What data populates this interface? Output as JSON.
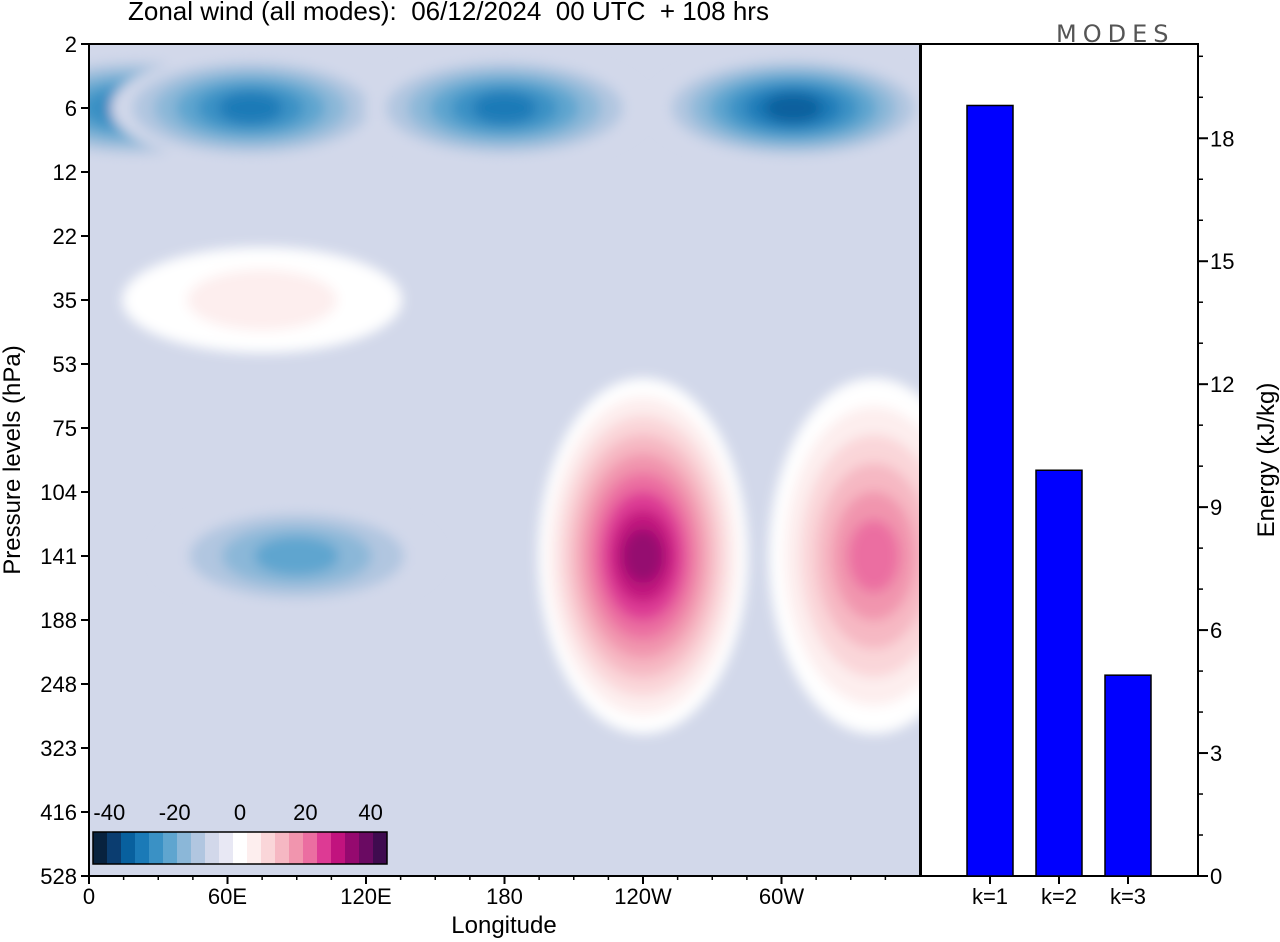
{
  "title": "Zonal wind (all modes):  06/12/2024  00 UTC  + 108 hrs",
  "brand": "MODES",
  "colors": {
    "bar_fill": "#0000ff",
    "frame": "#000000",
    "scale": [
      "#08223f",
      "#0b3d70",
      "#08609e",
      "#1b7ab7",
      "#3a91c5",
      "#5fa5cf",
      "#8bb7d8",
      "#b1c6e0",
      "#d2d8ea",
      "#e8e8f4",
      "#ffffff",
      "#fdeeee",
      "#fad6d9",
      "#f6b8c3",
      "#f195ae",
      "#eb6ea1",
      "#dd3a94",
      "#c1137e",
      "#95096f",
      "#6a0a62",
      "#3f0b4f"
    ]
  },
  "chart_data": [
    {
      "type": "heatmap",
      "title": "Zonal wind (all modes):  06/12/2024  00 UTC  + 108 hrs",
      "xlabel": "Longitude",
      "ylabel": "Pressure levels (hPa)",
      "x_ticks": [
        "0",
        "60E",
        "120E",
        "180",
        "120W",
        "60W"
      ],
      "y_ticks": [
        "2",
        "6",
        "12",
        "22",
        "35",
        "53",
        "75",
        "104",
        "141",
        "188",
        "248",
        "323",
        "416",
        "528"
      ],
      "colorbar": {
        "labels": [
          "-40",
          "-20",
          "0",
          "20",
          "40"
        ],
        "range": [
          -45,
          45
        ],
        "step": 5
      },
      "features": [
        {
          "lon": 20,
          "level": "6",
          "value": -32
        },
        {
          "lon": 70,
          "level": "6",
          "value": -30
        },
        {
          "lon": 180,
          "level": "6",
          "value": -30
        },
        {
          "lon": 305,
          "level": "6",
          "value": -36
        },
        {
          "lon": 240,
          "level": "141",
          "value": 45
        },
        {
          "lon": 340,
          "level": "141",
          "value": 32
        },
        {
          "lon": 90,
          "level": "141",
          "value": -22
        },
        {
          "lon": 75,
          "level": "35",
          "value": 12
        }
      ]
    },
    {
      "type": "bar",
      "categories": [
        "k=1",
        "k=2",
        "k=3"
      ],
      "values": [
        18.8,
        9.9,
        4.9
      ],
      "ylabel": "Energy (kJ/kg)",
      "y_ticks": [
        "0",
        "3",
        "6",
        "9",
        "12",
        "15",
        "18"
      ],
      "ylim": [
        0,
        20.3
      ]
    }
  ]
}
